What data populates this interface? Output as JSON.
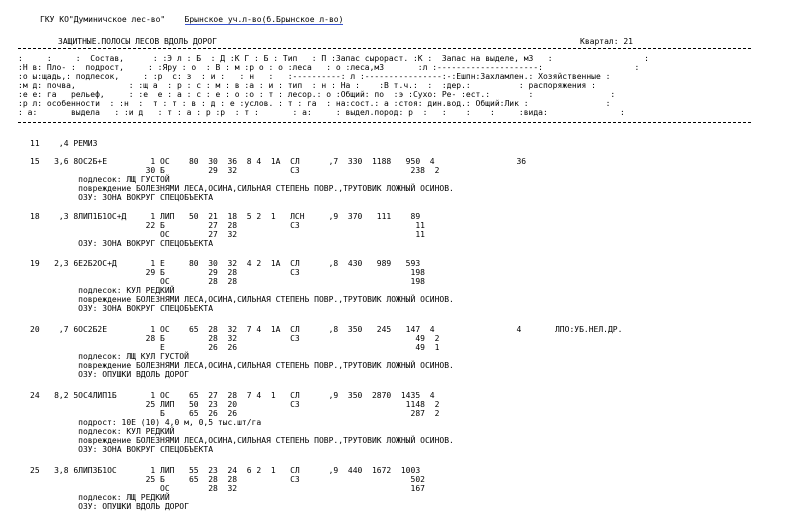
{
  "header": {
    "org": "ГКУ КО\"Думиничское лес-во\"",
    "forestry": "Брынское уч.л-во(б.Брынское л-во)",
    "title": "ЗАЩИТНЫЕ.ПОЛОСЫ ЛЕСОВ ВДОЛЬ ДОРОГ",
    "quarter_label": "Квартал: 21"
  },
  "table_header": {
    "lines": [
      ":     :     :  Состав,      : :Э л : Б  : Д :К Г : Б : Тип   : П :Запас сырораст. :К :  Запас на выделе, м3   :                   :",
      ":Н в: Пло- :  подрост,     : :Яру : о  : В : м :р о : о :леса   : о :леса,м3       :л :---------------------:                   :",
      ":о ы:щадь,: подлесок,     : :р  с: з  : и :   : н   :   :----------: л :----------------:-:Ешпн:Захламлен.: Хозяйственные :",
      ":м д: почва,           : :щ а  : р : с : м : в :а : и : тип  : н : На :    :В т.ч.:  :  :дер.:          : распоряжения :",
      ":е е: га   рельеф,     : :е  е : а : с : е : о :о : т : лесор.: о :Общий: по  :э :Сухо: Ре- :ест.:        :                :",
      ":р л: особенности  : :н  :  т : т : в : д : е :услов. : т : га  : на:сост.: а :стоя: дин.вод.: Общий:Лик :                :",
      ": а:       выдела   : :и д   : т : а : р :р  : т :       : а:     : выдел.пород: р  :   :    :    :     :вида:               :"
    ]
  },
  "records": [
    {
      "lines": [
        "11    ,4 РЕМИЗ"
      ]
    },
    {
      "lines": [
        "15   3,6 8ОС2Б+Е         1 ОС    80  30  36  8 4  1А  СЛ      ,7  330  1188   950  4                 36",
        "                        30 Б         29  32           С3                       238  2",
        "          подлесок: ЛЩ ГУСТОЙ",
        "          повреждение БОЛЕЗНЯМИ ЛЕСА,ОСИНА,СИЛЬНАЯ СТЕПЕНЬ ПОВР.,ТРУТОВИК ЛОЖНЫЙ ОСИНОВ.",
        "          ОЗУ: ЗОНА ВОКРУГ СПЕЦОБЪЕКТА"
      ]
    },
    {
      "lines": [
        "18    ,3 8ЛИП1Б1ОС+Д     1 ЛИП   50  21  18  5 2  1   ЛСН     ,9  370   111    89",
        "                        22 Б         27  28           С3                        11",
        "                           ОС        27  32                                     11",
        "          ОЗУ: ЗОНА ВОКРУГ СПЕЦОБЪЕКТА"
      ]
    },
    {
      "lines": [
        "19   2,3 6Е2Б2ОС+Д       1 Е     80  30  32  4 2  1А  СЛ      ,8  430   989   593",
        "                        29 Б         29  28           С3                       198",
        "                           ОС        28  28                                    198",
        "          подлесок: КУЛ РЕДКИЙ",
        "          повреждение БОЛЕЗНЯМИ ЛЕСА,ОСИНА,СИЛЬНАЯ СТЕПЕНЬ ПОВР.,ТРУТОВИК ЛОЖНЫЙ ОСИНОВ.",
        "          ОЗУ: ЗОНА ВОКРУГ СПЕЦОБЪЕКТА"
      ]
    },
    {
      "lines": [
        "20    ,7 6ОС2Б2Е         1 ОС    65  28  32  7 4  1А  СЛ      ,8  350   245   147  4                 4       ЛПО:УБ.НЕЛ.ДР.",
        "                        28 Б         28  32           С3                        49  2",
        "                           Е         26  26                                     49  1",
        "          подлесок: ЛЩ КУЛ ГУСТОЙ",
        "          повреждение БОЛЕЗНЯМИ ЛЕСА,ОСИНА,СИЛЬНАЯ СТЕПЕНЬ ПОВР.,ТРУТОВИК ЛОЖНЫЙ ОСИНОВ.",
        "          ОЗУ: ОПУШКИ ВДОЛЬ ДОРОГ"
      ]
    },
    {
      "lines": [
        "24   8,2 5ОС4ЛИП1Б       1 ОС    65  27  28  7 4  1   СЛ      ,9  350  2870  1435  4",
        "                        25 ЛИП   50  23  20           С3                      1148  2",
        "                           Б     65  26  26                                    287  2",
        "          подрост: 10Е (10) 4,0 м, 0,5 тыс.шт/га",
        "          подлесок: КУЛ РЕДКИЙ",
        "          повреждение БОЛЕЗНЯМИ ЛЕСА,ОСИНА,СИЛЬНАЯ СТЕПЕНЬ ПОВР.,ТРУТОВИК ЛОЖНЫЙ ОСИНОВ.",
        "          ОЗУ: ЗОНА ВОКРУГ СПЕЦОБЪЕКТА"
      ]
    },
    {
      "lines": [
        "25   3,8 6ЛИП3Б1ОС       1 ЛИП   55  23  24  6 2  1   СЛ      ,9  440  1672  1003",
        "                        25 Б     65  28  28           С3                       502",
        "                           ОС        28  32                                    167",
        "          подлесок: ЛЩ РЕДКИЙ",
        "          ОЗУ: ОПУШКИ ВДОЛЬ ДОРОГ"
      ]
    }
  ]
}
